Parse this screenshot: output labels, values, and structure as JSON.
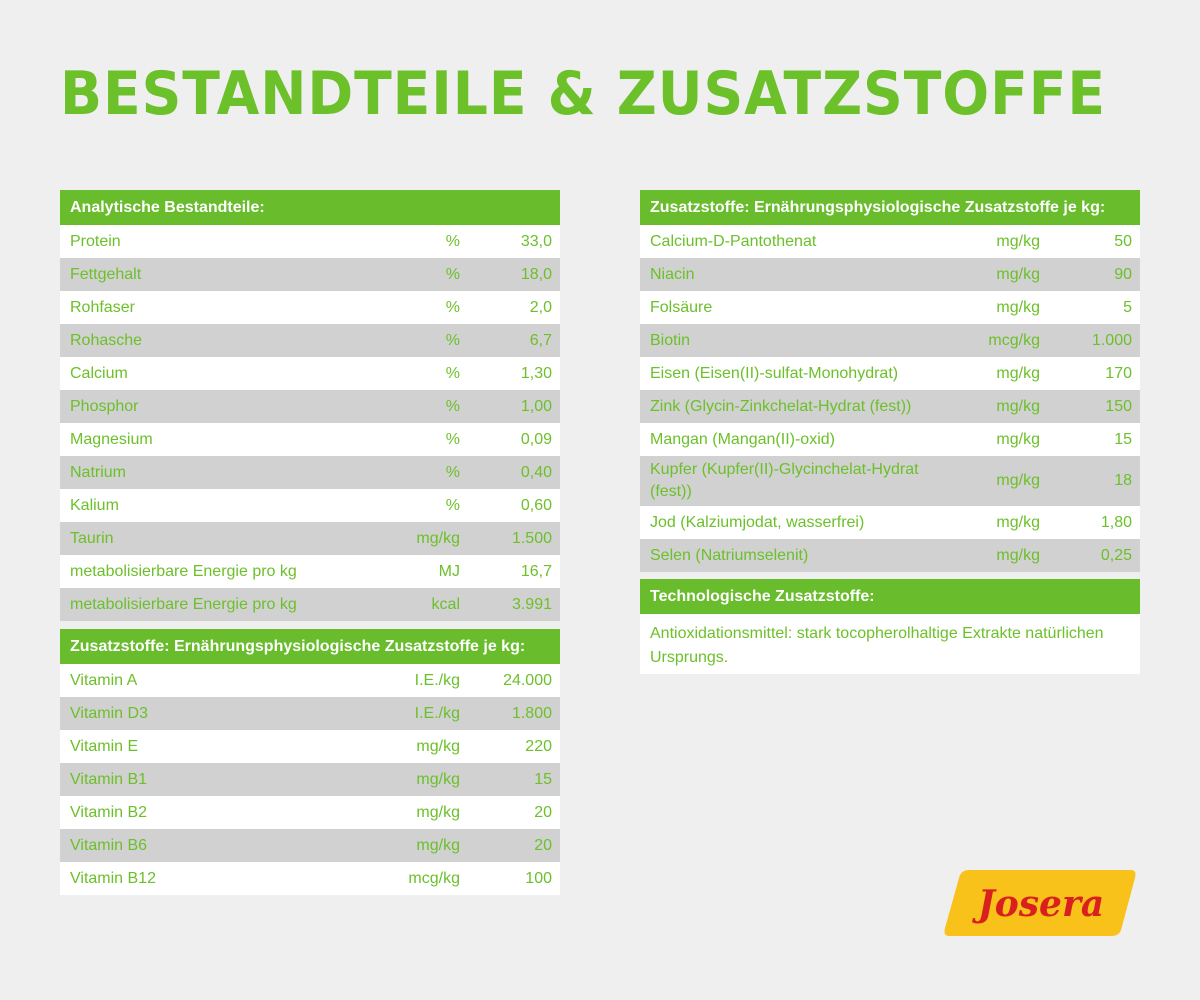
{
  "title": "Bestandteile & Zusatzstoffe",
  "colors": {
    "brand_green": "#69bc2c",
    "stripe_gray": "#d1d1d1",
    "logo_yellow": "#f8c21a",
    "logo_red": "#d9201f"
  },
  "analytic": {
    "header": "Analytische Bestandteile:",
    "rows": [
      {
        "name": "Protein",
        "unit": "%",
        "value": "33,0"
      },
      {
        "name": "Fettgehalt",
        "unit": "%",
        "value": "18,0"
      },
      {
        "name": "Rohfaser",
        "unit": "%",
        "value": "2,0"
      },
      {
        "name": "Rohasche",
        "unit": "%",
        "value": "6,7"
      },
      {
        "name": "Calcium",
        "unit": "%",
        "value": "1,30"
      },
      {
        "name": "Phosphor",
        "unit": "%",
        "value": "1,00"
      },
      {
        "name": "Magnesium",
        "unit": "%",
        "value": "0,09"
      },
      {
        "name": "Natrium",
        "unit": "%",
        "value": "0,40"
      },
      {
        "name": "Kalium",
        "unit": "%",
        "value": "0,60"
      },
      {
        "name": "Taurin",
        "unit": "mg/kg",
        "value": "1.500"
      },
      {
        "name": "metabolisierbare Energie pro kg",
        "unit": "MJ",
        "value": "16,7"
      },
      {
        "name": "metabolisierbare Energie pro kg",
        "unit": "kcal",
        "value": "3.991"
      }
    ]
  },
  "vitamins": {
    "header": "Zusatzstoffe: Ernährungsphysiologische Zusatzstoffe je kg:",
    "rows": [
      {
        "name": "Vitamin A",
        "unit": "I.E./kg",
        "value": "24.000"
      },
      {
        "name": "Vitamin D3",
        "unit": "I.E./kg",
        "value": "1.800"
      },
      {
        "name": "Vitamin E",
        "unit": "mg/kg",
        "value": "220"
      },
      {
        "name": "Vitamin B1",
        "unit": "mg/kg",
        "value": "15"
      },
      {
        "name": "Vitamin B2",
        "unit": "mg/kg",
        "value": "20"
      },
      {
        "name": "Vitamin B6",
        "unit": "mg/kg",
        "value": "20"
      },
      {
        "name": "Vitamin B12",
        "unit": "mcg/kg",
        "value": "100"
      }
    ]
  },
  "nutritional": {
    "header": "Zusatzstoffe: Ernährungsphysiologische Zusatzstoffe je kg:",
    "rows": [
      {
        "name": "Calcium-D-Pantothenat",
        "unit": "mg/kg",
        "value": "50"
      },
      {
        "name": "Niacin",
        "unit": "mg/kg",
        "value": "90"
      },
      {
        "name": "Folsäure",
        "unit": "mg/kg",
        "value": "5"
      },
      {
        "name": "Biotin",
        "unit": "mcg/kg",
        "value": "1.000"
      },
      {
        "name": "Eisen (Eisen(II)-sulfat-Monohydrat)",
        "unit": "mg/kg",
        "value": "170"
      },
      {
        "name": "Zink (Glycin-Zinkchelat-Hydrat (fest))",
        "unit": "mg/kg",
        "value": "150"
      },
      {
        "name": "Mangan (Mangan(II)-oxid)",
        "unit": "mg/kg",
        "value": "15"
      },
      {
        "name": "Kupfer (Kupfer(II)-Glycinchelat-Hydrat (fest))",
        "unit": "mg/kg",
        "value": "18"
      },
      {
        "name": "Jod (Kalziumjodat, wasserfrei)",
        "unit": "mg/kg",
        "value": "1,80"
      },
      {
        "name": "Selen (Natriumselenit)",
        "unit": "mg/kg",
        "value": "0,25"
      }
    ]
  },
  "technological": {
    "header": "Technologische Zusatzstoffe:",
    "text": "Antioxidationsmittel: stark tocopherolhaltige Extrakte natürlichen Ursprungs."
  },
  "logo": {
    "text": "Josera",
    "icon": "josera-logo"
  }
}
